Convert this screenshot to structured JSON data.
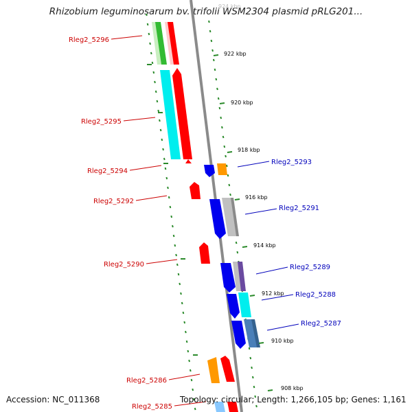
{
  "title": "Rhizobium leguminosarum bv. trifolii WSM2304 plasmid pRLG201...",
  "footer": {
    "accession": "Accession: NC_011368",
    "stats": "Topology: circular; Length: 1,266,105 bp; Genes: 1,161"
  },
  "colors": {
    "backbone": "#8a8a8a",
    "tick": "#2a8a2a",
    "left_label": "#cc0000",
    "right_label": "#0000bb"
  },
  "ruler": [
    "924 kbp",
    "922 kbp",
    "920 kbp",
    "918 kbp",
    "916 kbp",
    "914 kbp",
    "912 kbp",
    "910 kbp",
    "908 kbp"
  ],
  "left_genes": [
    "Rleg2_5296",
    "Rleg2_5295",
    "Rleg2_5294",
    "Rleg2_5292",
    "Rleg2_5290",
    "Rleg2_5286",
    "Rleg2_5285"
  ],
  "right_genes": [
    "Rleg2_5293",
    "Rleg2_5291",
    "Rleg2_5289",
    "Rleg2_5288",
    "Rleg2_5287"
  ]
}
